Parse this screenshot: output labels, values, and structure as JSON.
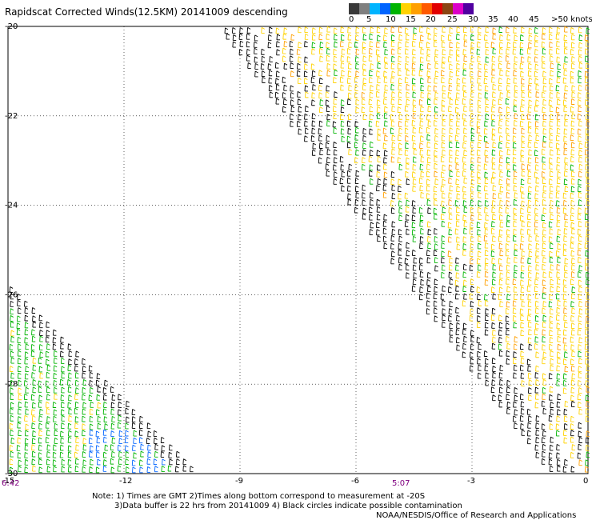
{
  "header": {
    "title": "Rapidscat Corrected Winds(12.5KM) 20141009 descending"
  },
  "legend": {
    "colors": [
      "#3a3a3a",
      "#7f7f7f",
      "#00b4ff",
      "#0064ff",
      "#00b400",
      "#ffd200",
      "#ffa000",
      "#ff5a00",
      "#e10000",
      "#8b4513",
      "#dc00c8",
      "#5000a0"
    ],
    "labels": [
      "0",
      "5",
      "10",
      "15",
      "20",
      "25",
      "30",
      "35",
      "40",
      "45",
      ">50 knots"
    ],
    "units": "knots"
  },
  "chart_data": {
    "type": "map",
    "x_ticks": [
      "-15",
      "-12",
      "-9",
      "-6",
      "-3",
      "0"
    ],
    "y_ticks": [
      "-20",
      "-22",
      "-24",
      "-26",
      "-28",
      "-30"
    ],
    "grid": "dotted",
    "xlim": [
      -15,
      0
    ],
    "ylim": [
      -30,
      -20
    ],
    "time_labels": [
      {
        "text": "6:42",
        "lon": -15.0
      },
      {
        "text": "5:07",
        "lon": -5.0
      }
    ]
  },
  "footer": {
    "note_line1": "Note: 1) Times are GMT 2)Times along bottom correspond to measurement at -20S",
    "note_line2": "3)Data buffer is 22 hrs from 20141009 4) Black circles indicate possible contamination",
    "credit": "NOAA/NESDIS/Office of Research and Applications"
  }
}
